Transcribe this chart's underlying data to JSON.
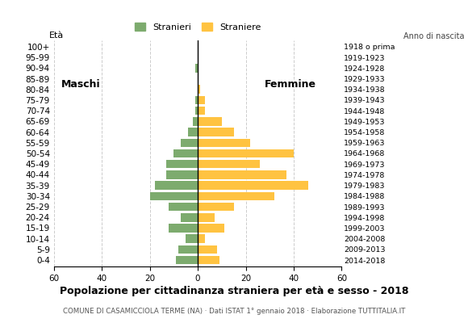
{
  "age_groups": [
    "0-4",
    "5-9",
    "10-14",
    "15-19",
    "20-24",
    "25-29",
    "30-34",
    "35-39",
    "40-44",
    "45-49",
    "50-54",
    "55-59",
    "60-64",
    "65-69",
    "70-74",
    "75-79",
    "80-84",
    "85-89",
    "90-94",
    "95-99",
    "100+"
  ],
  "birth_years": [
    "2014-2018",
    "2009-2013",
    "2004-2008",
    "1999-2003",
    "1994-1998",
    "1989-1993",
    "1984-1988",
    "1979-1983",
    "1974-1978",
    "1969-1973",
    "1964-1968",
    "1959-1963",
    "1954-1958",
    "1949-1953",
    "1944-1948",
    "1939-1943",
    "1934-1938",
    "1929-1933",
    "1924-1928",
    "1919-1923",
    "1918 o prima"
  ],
  "males": [
    9,
    8,
    5,
    12,
    7,
    12,
    20,
    18,
    13,
    13,
    10,
    7,
    4,
    2,
    1,
    1,
    0,
    0,
    1,
    0,
    0
  ],
  "females": [
    9,
    8,
    3,
    11,
    7,
    15,
    32,
    46,
    37,
    26,
    40,
    22,
    15,
    10,
    3,
    3,
    1,
    0,
    0,
    0,
    0
  ],
  "male_color": "#7dab6e",
  "female_color": "#ffc341",
  "title": "Popolazione per cittadinanza straniera per età e sesso - 2018",
  "subtitle": "COMUNE DI CASAMICCIOLA TERME (NA) · Dati ISTAT 1° gennaio 2018 · Elaborazione TUTTITALIA.IT",
  "xlabel_left": "Maschi",
  "xlabel_right": "Femmine",
  "legend_male": "Stranieri",
  "legend_female": "Straniere",
  "eta_label": "Età",
  "anno_label": "Anno di nascita",
  "xlim": 60,
  "background_color": "#ffffff",
  "grid_color": "#cccccc",
  "bar_height": 0.8
}
